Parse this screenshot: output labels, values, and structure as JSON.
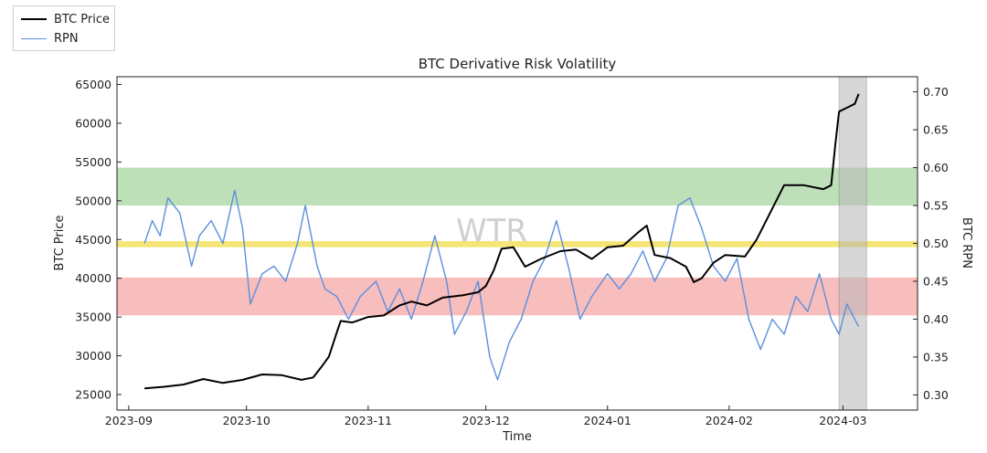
{
  "chart_data": {
    "type": "line",
    "title": "BTC Derivative Risk Volatility",
    "xlabel": "Time",
    "ylabel_left": "BTC Price",
    "ylabel_right": "BTC RPN",
    "watermark": "WTR",
    "x_ticks": [
      "2023-09",
      "2023-10",
      "2023-11",
      "2023-12",
      "2024-01",
      "2024-02",
      "2024-03"
    ],
    "y_left_ticks": [
      25000,
      30000,
      35000,
      40000,
      45000,
      50000,
      55000,
      60000,
      65000
    ],
    "y_right_ticks": [
      "0.30",
      "0.35",
      "0.40",
      "0.45",
      "0.50",
      "0.55",
      "0.60",
      "0.65",
      "0.70"
    ],
    "x_range": [
      "2023-08-29",
      "2024-03-20"
    ],
    "y_left_range": [
      23000,
      66000
    ],
    "y_right_range": [
      0.28,
      0.72
    ],
    "legend_placement": "top-left",
    "legend": [
      {
        "name": "BTC Price",
        "color": "#000000"
      },
      {
        "name": "RPN",
        "color": "#5b8fde"
      }
    ],
    "bands_rpn": [
      {
        "from": 0.55,
        "to": 0.6,
        "color": "#a8d5a0"
      },
      {
        "from": 0.495,
        "to": 0.503,
        "color": "#f2dc4a"
      },
      {
        "from": 0.405,
        "to": 0.455,
        "color": "#f5a7a7"
      }
    ],
    "highlight_x": {
      "from": "2024-02-29",
      "to": "2024-03-07",
      "color": "#b8b8b8"
    },
    "series": [
      {
        "name": "BTC Price",
        "axis": "left",
        "color": "#000000",
        "points": [
          [
            "2023-09-05",
            25800
          ],
          [
            "2023-09-10",
            26000
          ],
          [
            "2023-09-15",
            26300
          ],
          [
            "2023-09-20",
            27000
          ],
          [
            "2023-09-25",
            26500
          ],
          [
            "2023-09-30",
            26900
          ],
          [
            "2023-10-05",
            27600
          ],
          [
            "2023-10-10",
            27500
          ],
          [
            "2023-10-15",
            26900
          ],
          [
            "2023-10-18",
            27200
          ],
          [
            "2023-10-20",
            28500
          ],
          [
            "2023-10-22",
            29900
          ],
          [
            "2023-10-24",
            33000
          ],
          [
            "2023-10-25",
            34500
          ],
          [
            "2023-10-28",
            34300
          ],
          [
            "2023-11-01",
            35000
          ],
          [
            "2023-11-05",
            35200
          ],
          [
            "2023-11-09",
            36500
          ],
          [
            "2023-11-12",
            37000
          ],
          [
            "2023-11-16",
            36500
          ],
          [
            "2023-11-20",
            37500
          ],
          [
            "2023-11-25",
            37800
          ],
          [
            "2023-11-29",
            38200
          ],
          [
            "2023-12-01",
            39000
          ],
          [
            "2023-12-03",
            41000
          ],
          [
            "2023-12-05",
            43800
          ],
          [
            "2023-12-08",
            44000
          ],
          [
            "2023-12-11",
            41500
          ],
          [
            "2023-12-15",
            42500
          ],
          [
            "2023-12-20",
            43500
          ],
          [
            "2023-12-24",
            43700
          ],
          [
            "2023-12-28",
            42500
          ],
          [
            "2024-01-01",
            44000
          ],
          [
            "2024-01-05",
            44200
          ],
          [
            "2024-01-09",
            46000
          ],
          [
            "2024-01-11",
            46800
          ],
          [
            "2024-01-13",
            43000
          ],
          [
            "2024-01-17",
            42600
          ],
          [
            "2024-01-21",
            41500
          ],
          [
            "2024-01-23",
            39500
          ],
          [
            "2024-01-25",
            40000
          ],
          [
            "2024-01-28",
            42000
          ],
          [
            "2024-01-31",
            43000
          ],
          [
            "2024-02-05",
            42800
          ],
          [
            "2024-02-08",
            45000
          ],
          [
            "2024-02-12",
            49000
          ],
          [
            "2024-02-15",
            52000
          ],
          [
            "2024-02-20",
            52000
          ],
          [
            "2024-02-25",
            51500
          ],
          [
            "2024-02-27",
            52000
          ],
          [
            "2024-02-28",
            57000
          ],
          [
            "2024-02-29",
            61500
          ],
          [
            "2024-03-02",
            62000
          ],
          [
            "2024-03-04",
            62500
          ],
          [
            "2024-03-05",
            63800
          ]
        ]
      },
      {
        "name": "RPN",
        "axis": "right",
        "color": "#5b8fde",
        "points": [
          [
            "2023-09-05",
            0.5
          ],
          [
            "2023-09-07",
            0.53
          ],
          [
            "2023-09-09",
            0.51
          ],
          [
            "2023-09-11",
            0.56
          ],
          [
            "2023-09-14",
            0.54
          ],
          [
            "2023-09-17",
            0.47
          ],
          [
            "2023-09-19",
            0.51
          ],
          [
            "2023-09-22",
            0.53
          ],
          [
            "2023-09-25",
            0.5
          ],
          [
            "2023-09-28",
            0.57
          ],
          [
            "2023-09-30",
            0.52
          ],
          [
            "2023-10-02",
            0.42
          ],
          [
            "2023-10-05",
            0.46
          ],
          [
            "2023-10-08",
            0.47
          ],
          [
            "2023-10-11",
            0.45
          ],
          [
            "2023-10-14",
            0.5
          ],
          [
            "2023-10-16",
            0.55
          ],
          [
            "2023-10-19",
            0.47
          ],
          [
            "2023-10-21",
            0.44
          ],
          [
            "2023-10-24",
            0.43
          ],
          [
            "2023-10-27",
            0.4
          ],
          [
            "2023-10-30",
            0.43
          ],
          [
            "2023-11-03",
            0.45
          ],
          [
            "2023-11-06",
            0.41
          ],
          [
            "2023-11-09",
            0.44
          ],
          [
            "2023-11-12",
            0.4
          ],
          [
            "2023-11-15",
            0.45
          ],
          [
            "2023-11-18",
            0.51
          ],
          [
            "2023-11-21",
            0.45
          ],
          [
            "2023-11-23",
            0.38
          ],
          [
            "2023-11-26",
            0.41
          ],
          [
            "2023-11-29",
            0.45
          ],
          [
            "2023-12-02",
            0.35
          ],
          [
            "2023-12-04",
            0.32
          ],
          [
            "2023-12-07",
            0.37
          ],
          [
            "2023-12-10",
            0.4
          ],
          [
            "2023-12-13",
            0.45
          ],
          [
            "2023-12-16",
            0.48
          ],
          [
            "2023-12-19",
            0.53
          ],
          [
            "2023-12-22",
            0.47
          ],
          [
            "2023-12-25",
            0.4
          ],
          [
            "2023-12-28",
            0.43
          ],
          [
            "2024-01-01",
            0.46
          ],
          [
            "2024-01-04",
            0.44
          ],
          [
            "2024-01-07",
            0.46
          ],
          [
            "2024-01-10",
            0.49
          ],
          [
            "2024-01-13",
            0.45
          ],
          [
            "2024-01-16",
            0.48
          ],
          [
            "2024-01-19",
            0.55
          ],
          [
            "2024-01-22",
            0.56
          ],
          [
            "2024-01-25",
            0.52
          ],
          [
            "2024-01-28",
            0.47
          ],
          [
            "2024-01-31",
            0.45
          ],
          [
            "2024-02-03",
            0.48
          ],
          [
            "2024-02-06",
            0.4
          ],
          [
            "2024-02-09",
            0.36
          ],
          [
            "2024-02-12",
            0.4
          ],
          [
            "2024-02-15",
            0.38
          ],
          [
            "2024-02-18",
            0.43
          ],
          [
            "2024-02-21",
            0.41
          ],
          [
            "2024-02-24",
            0.46
          ],
          [
            "2024-02-27",
            0.4
          ],
          [
            "2024-02-29",
            0.38
          ],
          [
            "2024-03-02",
            0.42
          ],
          [
            "2024-03-05",
            0.39
          ]
        ]
      }
    ]
  }
}
